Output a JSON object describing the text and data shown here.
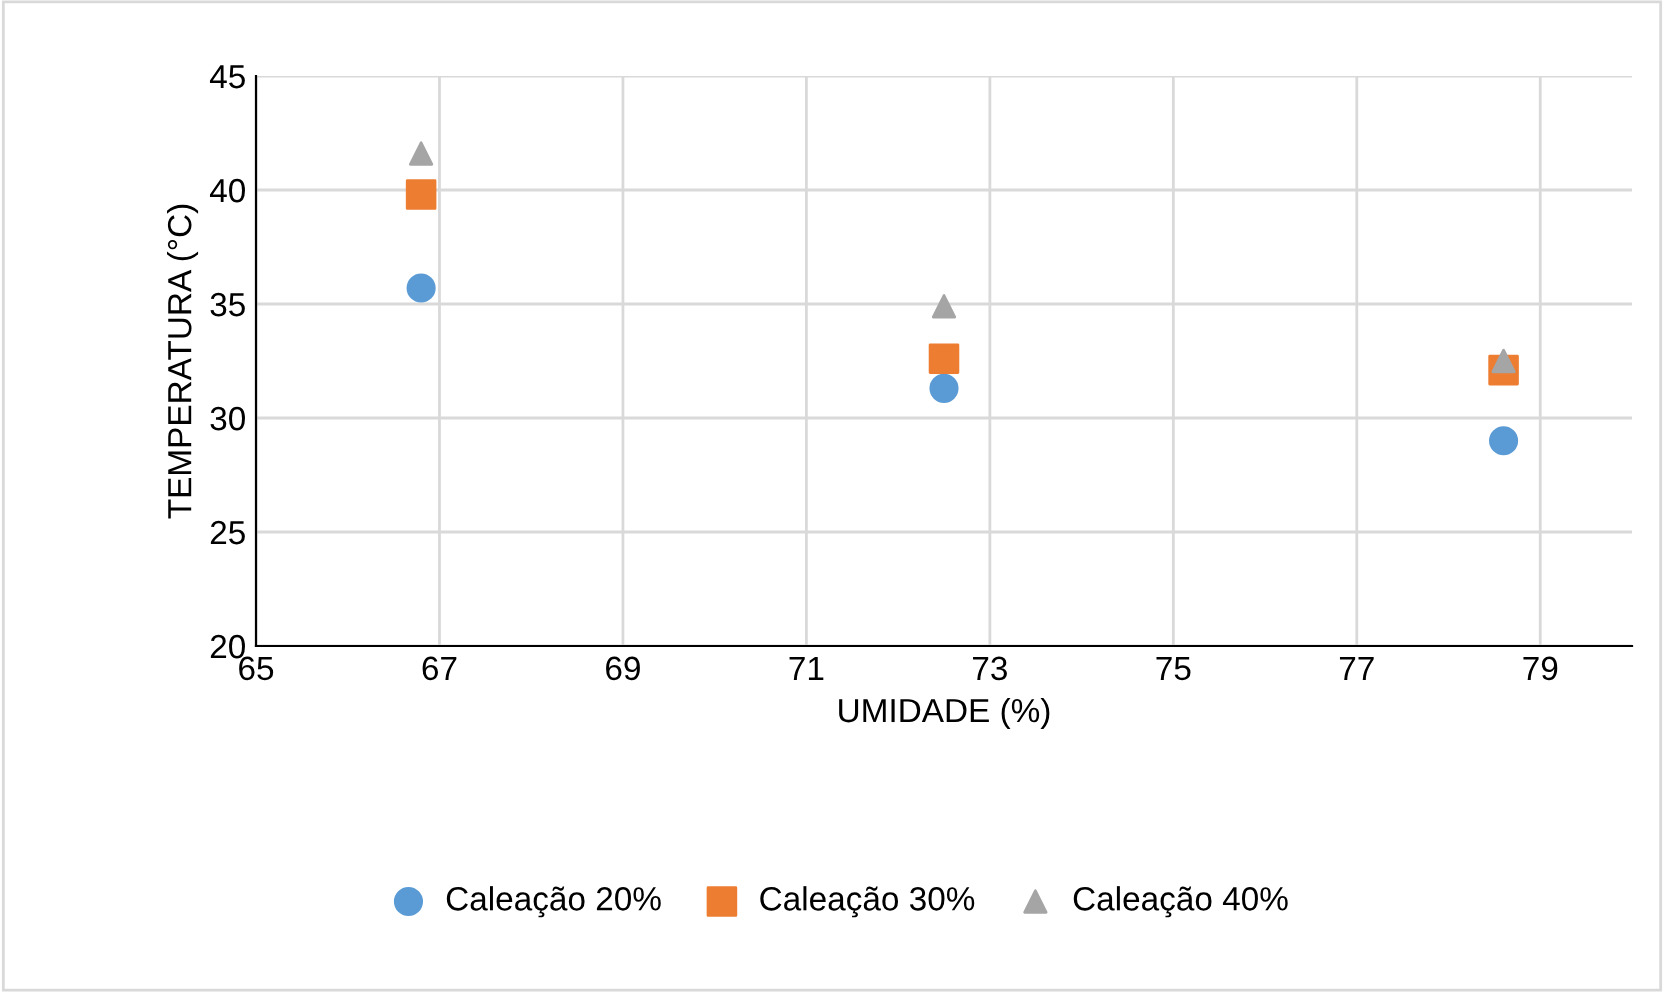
{
  "chart_data": {
    "type": "scatter",
    "xlabel": "UMIDADE (%)",
    "ylabel": "TEMPERATURA (°C)",
    "x": [
      66.8,
      72.5,
      78.6
    ],
    "series": [
      {
        "name": "Caleação 20%",
        "color": "#5b9bd5",
        "marker": "circle",
        "values": [
          35.7,
          31.3,
          29.0
        ]
      },
      {
        "name": "Caleação 30%",
        "color": "#ed7d31",
        "marker": "square",
        "values": [
          39.8,
          32.6,
          32.1
        ]
      },
      {
        "name": "Caleação 40%",
        "color": "#a5a5a5",
        "marker": "triangle",
        "values": [
          41.6,
          34.9,
          32.5
        ]
      }
    ],
    "xlim": [
      65,
      80
    ],
    "xticks": [
      65,
      67,
      69,
      71,
      73,
      75,
      77,
      79
    ],
    "ylim": [
      20,
      45
    ],
    "yticks": [
      20,
      25,
      30,
      35,
      40,
      45
    ],
    "grid": true,
    "legend": "bottom"
  }
}
